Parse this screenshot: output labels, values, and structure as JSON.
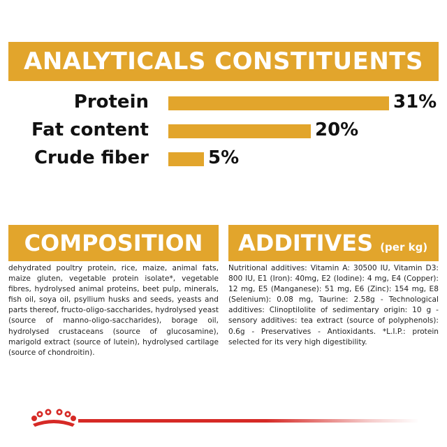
{
  "analytical": {
    "title": "ANALYTICALS CONSTITUENTS",
    "items": [
      {
        "label": "Protein",
        "value_text": "31%",
        "value": 31
      },
      {
        "label": "Fat content",
        "value_text": "20%",
        "value": 20
      },
      {
        "label": "Crude fiber",
        "value_text": "5%",
        "value": 5
      }
    ]
  },
  "composition": {
    "title": "COMPOSITION",
    "text": "dehydrated poultry protein, rice, maize, animal fats, maize gluten, vegetable protein isolate*, vegetable fibres, hydrolysed animal proteins, beet pulp, minerals, fish oil, soya oil, psyllium husks and seeds, yeasts and parts thereof, fructo-oligo-saccharides, hydrolysed yeast (source of manno-oligo-saccharides), borage oil, hydrolysed crustaceans (source of glucosamine), marigold extract (source of lutein), hydrolysed cartilage (source of chondroitin)."
  },
  "additives": {
    "title": "ADDITIVES",
    "subtitle": "(per kg)",
    "text": "Nutritional additives: Vitamin A: 30500 IU, Vitamin D3: 800 IU, E1 (Iron): 40mg, E2 (Iodine): 4 mg, E4 (Copper): 12 mg, E5 (Manganese): 51 mg, E6 (Zinc): 154 mg, E8 (Selenium): 0.08 mg, Taurine: 2.58g - Technological additives: Clinoptilolite of sedimentary origin: 10 g - sensory additives: tea extract (source of polyphenols): 0.6g - Preservatives - Antioxidants. *L.I.P.: protein selected for its very high digestibility."
  },
  "colors": {
    "accent": "#e2a52c",
    "brand_red": "#d62a26",
    "text": "#111111"
  },
  "icons": {
    "footer_logo": "crown-icon"
  }
}
